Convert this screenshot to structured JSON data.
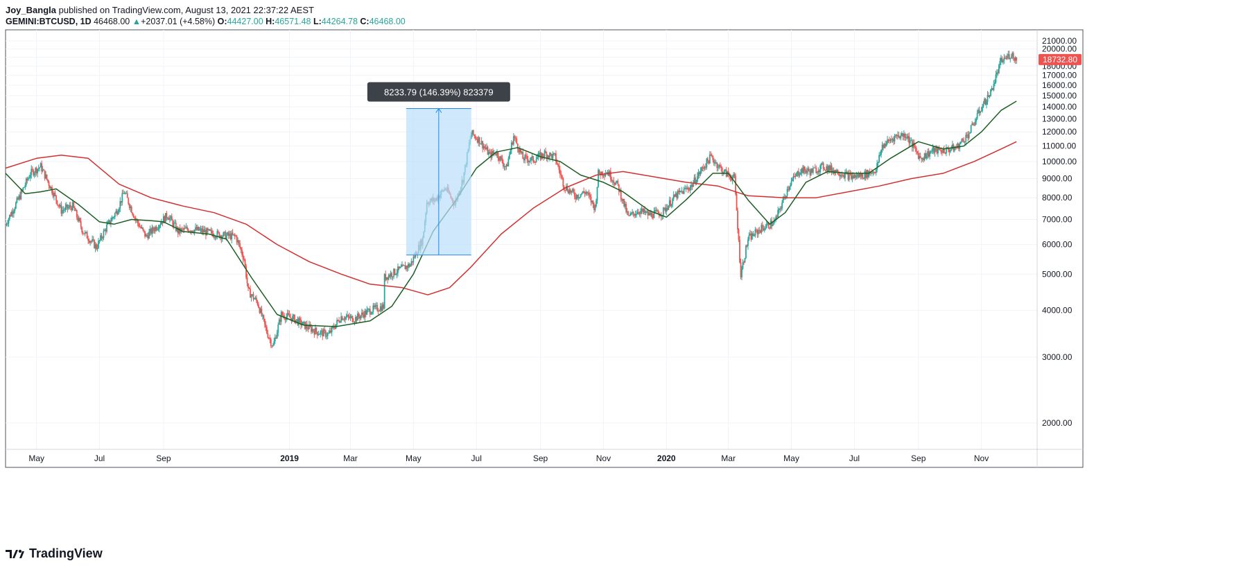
{
  "header": {
    "author": "Joy_Bangla",
    "published_text": "published on TradingView.com, August 13, 2021 22:37:22 AEST",
    "symbol": "GEMINI:BTCUSD, 1D",
    "last": "46468.00",
    "change_arrow": "▲",
    "change": "+2037.01 (+4.58%)",
    "o_label": "O:",
    "o_value": "44427.00",
    "h_label": "H:",
    "h_value": "46571.48",
    "l_label": "L:",
    "l_value": "44264.78",
    "c_label": "C:",
    "c_value": "46468.00"
  },
  "footer": {
    "brand": "TradingView",
    "logo_icon": "tradingview-logo-icon"
  },
  "colors": {
    "up": "#26a69a",
    "down": "#ef5350",
    "ma_short": "#1b5e20",
    "ma_long": "#d32f2f",
    "measure_fill": "#bbdefb",
    "measure_line": "#1e88e5",
    "grid": "#f0f3fa",
    "price_tag": "#ef5350"
  },
  "chart_data": {
    "type": "candlestick",
    "y_scale": "log",
    "ylim": [
      1700,
      22500
    ],
    "xlim": [
      "2018-04-01",
      "2020-12-25"
    ],
    "grid": true,
    "y_ticks": [
      "2000.00",
      "3000.00",
      "4000.00",
      "5000.00",
      "6000.00",
      "7000.00",
      "8000.00",
      "9000.00",
      "10000.00",
      "11000.00",
      "12000.00",
      "13000.00",
      "14000.00",
      "15000.00",
      "16000.00",
      "17000.00",
      "18000.00",
      "19000.00",
      "20000.00",
      "21000.00"
    ],
    "x_ticks": [
      {
        "date": "2018-05-01",
        "label": "May",
        "bold": false
      },
      {
        "date": "2018-07-01",
        "label": "Jul",
        "bold": false
      },
      {
        "date": "2018-09-01",
        "label": "Sep",
        "bold": false
      },
      {
        "date": "2019-01-01",
        "label": "2019",
        "bold": true
      },
      {
        "date": "2019-03-01",
        "label": "Mar",
        "bold": false
      },
      {
        "date": "2019-05-01",
        "label": "May",
        "bold": false
      },
      {
        "date": "2019-07-01",
        "label": "Jul",
        "bold": false
      },
      {
        "date": "2019-09-01",
        "label": "Sep",
        "bold": false
      },
      {
        "date": "2019-11-01",
        "label": "Nov",
        "bold": false
      },
      {
        "date": "2020-01-01",
        "label": "2020",
        "bold": true
      },
      {
        "date": "2020-03-01",
        "label": "Mar",
        "bold": false
      },
      {
        "date": "2020-05-01",
        "label": "May",
        "bold": false
      },
      {
        "date": "2020-07-01",
        "label": "Jul",
        "bold": false
      },
      {
        "date": "2020-09-01",
        "label": "Sep",
        "bold": false
      },
      {
        "date": "2020-11-01",
        "label": "Nov",
        "bold": false
      }
    ],
    "close_series": [
      [
        "2018-04-01",
        6800
      ],
      [
        "2018-04-15",
        8100
      ],
      [
        "2018-04-25",
        9300
      ],
      [
        "2018-05-05",
        9700
      ],
      [
        "2018-05-15",
        8500
      ],
      [
        "2018-05-25",
        7400
      ],
      [
        "2018-06-05",
        7600
      ],
      [
        "2018-06-15",
        6500
      ],
      [
        "2018-06-28",
        5900
      ],
      [
        "2018-07-08",
        6700
      ],
      [
        "2018-07-18",
        7400
      ],
      [
        "2018-07-25",
        8300
      ],
      [
        "2018-08-05",
        7000
      ],
      [
        "2018-08-15",
        6300
      ],
      [
        "2018-08-25",
        6700
      ],
      [
        "2018-09-05",
        7200
      ],
      [
        "2018-09-15",
        6500
      ],
      [
        "2018-09-25",
        6600
      ],
      [
        "2018-10-05",
        6550
      ],
      [
        "2018-10-15",
        6450
      ],
      [
        "2018-10-28",
        6350
      ],
      [
        "2018-11-10",
        6300
      ],
      [
        "2018-11-18",
        5500
      ],
      [
        "2018-11-22",
        4500
      ],
      [
        "2018-12-01",
        4200
      ],
      [
        "2018-12-10",
        3500
      ],
      [
        "2018-12-16",
        3200
      ],
      [
        "2018-12-24",
        3900
      ],
      [
        "2019-01-05",
        3800
      ],
      [
        "2019-01-15",
        3650
      ],
      [
        "2019-01-28",
        3500
      ],
      [
        "2019-02-08",
        3450
      ],
      [
        "2019-02-20",
        3850
      ],
      [
        "2019-03-05",
        3800
      ],
      [
        "2019-03-20",
        4000
      ],
      [
        "2019-04-02",
        4100
      ],
      [
        "2019-04-03",
        4900
      ],
      [
        "2019-04-15",
        5100
      ],
      [
        "2019-04-28",
        5300
      ],
      [
        "2019-05-10",
        6200
      ],
      [
        "2019-05-14",
        7800
      ],
      [
        "2019-05-22",
        7900
      ],
      [
        "2019-06-01",
        8500
      ],
      [
        "2019-06-10",
        7700
      ],
      [
        "2019-06-18",
        9000
      ],
      [
        "2019-06-26",
        11900
      ],
      [
        "2019-07-04",
        11400
      ],
      [
        "2019-07-14",
        10400
      ],
      [
        "2019-07-20",
        10600
      ],
      [
        "2019-07-30",
        9600
      ],
      [
        "2019-08-06",
        11700
      ],
      [
        "2019-08-15",
        10200
      ],
      [
        "2019-08-25",
        10100
      ],
      [
        "2019-09-05",
        10500
      ],
      [
        "2019-09-15",
        10300
      ],
      [
        "2019-09-24",
        8600
      ],
      [
        "2019-10-05",
        8100
      ],
      [
        "2019-10-15",
        8300
      ],
      [
        "2019-10-24",
        7500
      ],
      [
        "2019-10-27",
        9300
      ],
      [
        "2019-11-05",
        9400
      ],
      [
        "2019-11-15",
        8600
      ],
      [
        "2019-11-25",
        7100
      ],
      [
        "2019-12-05",
        7400
      ],
      [
        "2019-12-15",
        7200
      ],
      [
        "2019-12-28",
        7300
      ],
      [
        "2020-01-10",
        8100
      ],
      [
        "2020-01-25",
        8600
      ],
      [
        "2020-02-05",
        9600
      ],
      [
        "2020-02-13",
        10300
      ],
      [
        "2020-02-25",
        9400
      ],
      [
        "2020-03-07",
        9000
      ],
      [
        "2020-03-13",
        5000
      ],
      [
        "2020-03-20",
        6200
      ],
      [
        "2020-04-01",
        6600
      ],
      [
        "2020-04-15",
        6900
      ],
      [
        "2020-04-29",
        8700
      ],
      [
        "2020-05-10",
        9500
      ],
      [
        "2020-05-20",
        9400
      ],
      [
        "2020-06-01",
        9700
      ],
      [
        "2020-06-15",
        9400
      ],
      [
        "2020-06-28",
        9100
      ],
      [
        "2020-07-10",
        9200
      ],
      [
        "2020-07-22",
        9500
      ],
      [
        "2020-07-28",
        11000
      ],
      [
        "2020-08-10",
        11700
      ],
      [
        "2020-08-20",
        11800
      ],
      [
        "2020-09-03",
        10200
      ],
      [
        "2020-09-15",
        10700
      ],
      [
        "2020-09-25",
        10700
      ],
      [
        "2020-10-08",
        10900
      ],
      [
        "2020-10-20",
        11900
      ],
      [
        "2020-10-31",
        13800
      ],
      [
        "2020-11-10",
        15300
      ],
      [
        "2020-11-20",
        18500
      ],
      [
        "2020-11-30",
        19400
      ],
      [
        "2020-12-05",
        18732.8
      ]
    ],
    "ma_short": [
      [
        "2018-04-01",
        9300
      ],
      [
        "2018-04-20",
        8200
      ],
      [
        "2018-05-05",
        8300
      ],
      [
        "2018-05-20",
        8450
      ],
      [
        "2018-06-10",
        7700
      ],
      [
        "2018-07-01",
        6900
      ],
      [
        "2018-07-15",
        6800
      ],
      [
        "2018-08-01",
        7000
      ],
      [
        "2018-08-20",
        6950
      ],
      [
        "2018-09-01",
        6900
      ],
      [
        "2018-09-20",
        6500
      ],
      [
        "2018-10-15",
        6400
      ],
      [
        "2018-11-01",
        6200
      ],
      [
        "2018-11-25",
        4900
      ],
      [
        "2018-12-20",
        3900
      ],
      [
        "2019-01-15",
        3650
      ],
      [
        "2019-02-15",
        3620
      ],
      [
        "2019-03-20",
        3750
      ],
      [
        "2019-04-10",
        4100
      ],
      [
        "2019-05-01",
        5000
      ],
      [
        "2019-05-20",
        6500
      ],
      [
        "2019-06-10",
        7800
      ],
      [
        "2019-07-01",
        9600
      ],
      [
        "2019-07-20",
        10600
      ],
      [
        "2019-08-10",
        10900
      ],
      [
        "2019-09-01",
        10300
      ],
      [
        "2019-09-20",
        10000
      ],
      [
        "2019-10-10",
        9200
      ],
      [
        "2019-11-01",
        8800
      ],
      [
        "2019-11-20",
        8300
      ],
      [
        "2019-12-15",
        7400
      ],
      [
        "2020-01-01",
        7100
      ],
      [
        "2020-01-20",
        7900
      ],
      [
        "2020-02-15",
        9300
      ],
      [
        "2020-03-01",
        9300
      ],
      [
        "2020-03-20",
        7900
      ],
      [
        "2020-04-10",
        6800
      ],
      [
        "2020-04-25",
        7300
      ],
      [
        "2020-05-15",
        8800
      ],
      [
        "2020-06-05",
        9400
      ],
      [
        "2020-06-25",
        9300
      ],
      [
        "2020-07-15",
        9300
      ],
      [
        "2020-08-05",
        10200
      ],
      [
        "2020-09-01",
        11300
      ],
      [
        "2020-09-25",
        10800
      ],
      [
        "2020-10-15",
        11000
      ],
      [
        "2020-11-01",
        12000
      ],
      [
        "2020-11-20",
        13700
      ],
      [
        "2020-12-05",
        14500
      ]
    ],
    "ma_long": [
      [
        "2018-04-01",
        9600
      ],
      [
        "2018-05-01",
        10200
      ],
      [
        "2018-05-25",
        10400
      ],
      [
        "2018-06-20",
        10200
      ],
      [
        "2018-07-20",
        8700
      ],
      [
        "2018-08-20",
        8000
      ],
      [
        "2018-09-20",
        7600
      ],
      [
        "2018-10-20",
        7300
      ],
      [
        "2018-11-20",
        6800
      ],
      [
        "2018-12-20",
        6000
      ],
      [
        "2019-01-20",
        5400
      ],
      [
        "2019-02-20",
        5000
      ],
      [
        "2019-03-20",
        4700
      ],
      [
        "2019-04-20",
        4600
      ],
      [
        "2019-05-15",
        4400
      ],
      [
        "2019-06-05",
        4600
      ],
      [
        "2019-06-25",
        5200
      ],
      [
        "2019-07-25",
        6400
      ],
      [
        "2019-08-25",
        7500
      ],
      [
        "2019-09-25",
        8500
      ],
      [
        "2019-10-25",
        9200
      ],
      [
        "2019-11-20",
        9400
      ],
      [
        "2019-12-20",
        9100
      ],
      [
        "2020-01-20",
        8800
      ],
      [
        "2020-02-20",
        8600
      ],
      [
        "2020-03-20",
        8100
      ],
      [
        "2020-04-25",
        8000
      ],
      [
        "2020-05-25",
        8000
      ],
      [
        "2020-06-25",
        8300
      ],
      [
        "2020-07-25",
        8600
      ],
      [
        "2020-08-25",
        9000
      ],
      [
        "2020-09-25",
        9300
      ],
      [
        "2020-10-25",
        10000
      ],
      [
        "2020-11-20",
        10800
      ],
      [
        "2020-12-05",
        11300
      ]
    ],
    "measure": {
      "start_date": "2019-04-24",
      "end_date": "2019-06-26",
      "low": 5624,
      "high": 13858,
      "label": "8233.79 (146.39%) 823379"
    },
    "last_price_label": "18732.80",
    "last_price": 18732.8
  }
}
